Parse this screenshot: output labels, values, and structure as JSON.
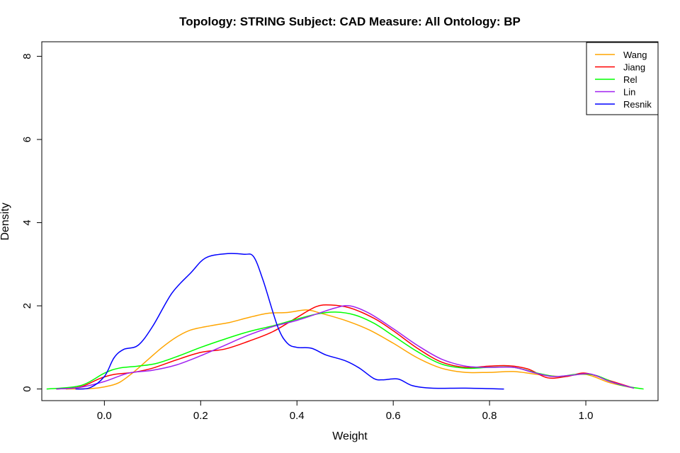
{
  "chart_data": {
    "type": "line",
    "title": "Topology: STRING   Subject: CAD   Measure: All   Ontology: BP",
    "xlabel": "Weight",
    "ylabel": "Density",
    "xlim": [
      -0.13,
      1.15
    ],
    "ylim": [
      -0.28,
      8.35
    ],
    "x_ticks": [
      0.0,
      0.2,
      0.4,
      0.6,
      0.8,
      1.0
    ],
    "x_tick_labels": [
      "0.0",
      "0.2",
      "0.4",
      "0.6",
      "0.8",
      "1.0"
    ],
    "y_ticks": [
      0,
      2,
      4,
      6,
      8
    ],
    "y_tick_labels": [
      "0",
      "2",
      "4",
      "6",
      "8"
    ],
    "legend_position": "top-right",
    "grid": false,
    "series": [
      {
        "name": "Wang",
        "color": "#FFA500",
        "points": [
          [
            -0.08,
            0.0
          ],
          [
            -0.03,
            0.01
          ],
          [
            0.0,
            0.05
          ],
          [
            0.03,
            0.15
          ],
          [
            0.06,
            0.4
          ],
          [
            0.09,
            0.7
          ],
          [
            0.12,
            1.0
          ],
          [
            0.15,
            1.25
          ],
          [
            0.18,
            1.42
          ],
          [
            0.22,
            1.52
          ],
          [
            0.26,
            1.6
          ],
          [
            0.3,
            1.72
          ],
          [
            0.34,
            1.82
          ],
          [
            0.38,
            1.84
          ],
          [
            0.42,
            1.9
          ],
          [
            0.45,
            1.82
          ],
          [
            0.5,
            1.65
          ],
          [
            0.55,
            1.42
          ],
          [
            0.6,
            1.1
          ],
          [
            0.65,
            0.75
          ],
          [
            0.7,
            0.5
          ],
          [
            0.75,
            0.4
          ],
          [
            0.8,
            0.4
          ],
          [
            0.85,
            0.42
          ],
          [
            0.9,
            0.35
          ],
          [
            0.95,
            0.3
          ],
          [
            1.0,
            0.35
          ],
          [
            1.05,
            0.15
          ],
          [
            1.1,
            0.02
          ]
        ]
      },
      {
        "name": "Jiang",
        "color": "#FF0000",
        "points": [
          [
            -0.1,
            0.0
          ],
          [
            -0.05,
            0.05
          ],
          [
            -0.01,
            0.25
          ],
          [
            0.02,
            0.35
          ],
          [
            0.06,
            0.4
          ],
          [
            0.1,
            0.5
          ],
          [
            0.15,
            0.7
          ],
          [
            0.2,
            0.88
          ],
          [
            0.25,
            0.96
          ],
          [
            0.3,
            1.15
          ],
          [
            0.35,
            1.38
          ],
          [
            0.4,
            1.72
          ],
          [
            0.44,
            1.98
          ],
          [
            0.47,
            2.02
          ],
          [
            0.51,
            1.95
          ],
          [
            0.56,
            1.7
          ],
          [
            0.6,
            1.4
          ],
          [
            0.65,
            0.98
          ],
          [
            0.7,
            0.65
          ],
          [
            0.75,
            0.52
          ],
          [
            0.8,
            0.55
          ],
          [
            0.84,
            0.56
          ],
          [
            0.88,
            0.48
          ],
          [
            0.92,
            0.27
          ],
          [
            0.96,
            0.3
          ],
          [
            1.0,
            0.38
          ],
          [
            1.05,
            0.2
          ],
          [
            1.1,
            0.02
          ]
        ]
      },
      {
        "name": "Rel",
        "color": "#00FF00",
        "points": [
          [
            -0.12,
            0.0
          ],
          [
            -0.05,
            0.08
          ],
          [
            0.0,
            0.38
          ],
          [
            0.03,
            0.5
          ],
          [
            0.07,
            0.55
          ],
          [
            0.11,
            0.62
          ],
          [
            0.16,
            0.82
          ],
          [
            0.2,
            1.0
          ],
          [
            0.25,
            1.2
          ],
          [
            0.3,
            1.38
          ],
          [
            0.35,
            1.52
          ],
          [
            0.4,
            1.68
          ],
          [
            0.44,
            1.8
          ],
          [
            0.48,
            1.85
          ],
          [
            0.52,
            1.78
          ],
          [
            0.56,
            1.58
          ],
          [
            0.6,
            1.28
          ],
          [
            0.65,
            0.9
          ],
          [
            0.7,
            0.6
          ],
          [
            0.75,
            0.5
          ],
          [
            0.8,
            0.52
          ],
          [
            0.85,
            0.52
          ],
          [
            0.9,
            0.38
          ],
          [
            0.94,
            0.3
          ],
          [
            0.98,
            0.35
          ],
          [
            1.02,
            0.33
          ],
          [
            1.07,
            0.1
          ],
          [
            1.12,
            0.0
          ]
        ]
      },
      {
        "name": "Lin",
        "color": "#A020F0",
        "points": [
          [
            -0.1,
            0.0
          ],
          [
            -0.05,
            0.04
          ],
          [
            0.0,
            0.18
          ],
          [
            0.05,
            0.38
          ],
          [
            0.1,
            0.45
          ],
          [
            0.15,
            0.58
          ],
          [
            0.2,
            0.8
          ],
          [
            0.25,
            1.05
          ],
          [
            0.3,
            1.3
          ],
          [
            0.35,
            1.5
          ],
          [
            0.4,
            1.65
          ],
          [
            0.44,
            1.8
          ],
          [
            0.48,
            1.95
          ],
          [
            0.51,
            2.0
          ],
          [
            0.55,
            1.82
          ],
          [
            0.6,
            1.45
          ],
          [
            0.65,
            1.05
          ],
          [
            0.7,
            0.72
          ],
          [
            0.75,
            0.55
          ],
          [
            0.8,
            0.52
          ],
          [
            0.85,
            0.52
          ],
          [
            0.89,
            0.4
          ],
          [
            0.93,
            0.3
          ],
          [
            0.97,
            0.33
          ],
          [
            1.01,
            0.36
          ],
          [
            1.05,
            0.18
          ],
          [
            1.1,
            0.02
          ]
        ]
      },
      {
        "name": "Resnik",
        "color": "#0000FF",
        "points": [
          [
            -0.06,
            0.0
          ],
          [
            -0.03,
            0.03
          ],
          [
            0.0,
            0.3
          ],
          [
            0.02,
            0.75
          ],
          [
            0.04,
            0.95
          ],
          [
            0.07,
            1.05
          ],
          [
            0.1,
            1.5
          ],
          [
            0.14,
            2.3
          ],
          [
            0.18,
            2.8
          ],
          [
            0.21,
            3.15
          ],
          [
            0.25,
            3.25
          ],
          [
            0.29,
            3.24
          ],
          [
            0.31,
            3.18
          ],
          [
            0.33,
            2.6
          ],
          [
            0.36,
            1.5
          ],
          [
            0.38,
            1.1
          ],
          [
            0.4,
            1.0
          ],
          [
            0.43,
            0.98
          ],
          [
            0.46,
            0.82
          ],
          [
            0.5,
            0.68
          ],
          [
            0.53,
            0.5
          ],
          [
            0.56,
            0.25
          ],
          [
            0.58,
            0.22
          ],
          [
            0.61,
            0.24
          ],
          [
            0.64,
            0.08
          ],
          [
            0.68,
            0.02
          ],
          [
            0.75,
            0.02
          ],
          [
            0.83,
            0.0
          ]
        ]
      }
    ]
  }
}
